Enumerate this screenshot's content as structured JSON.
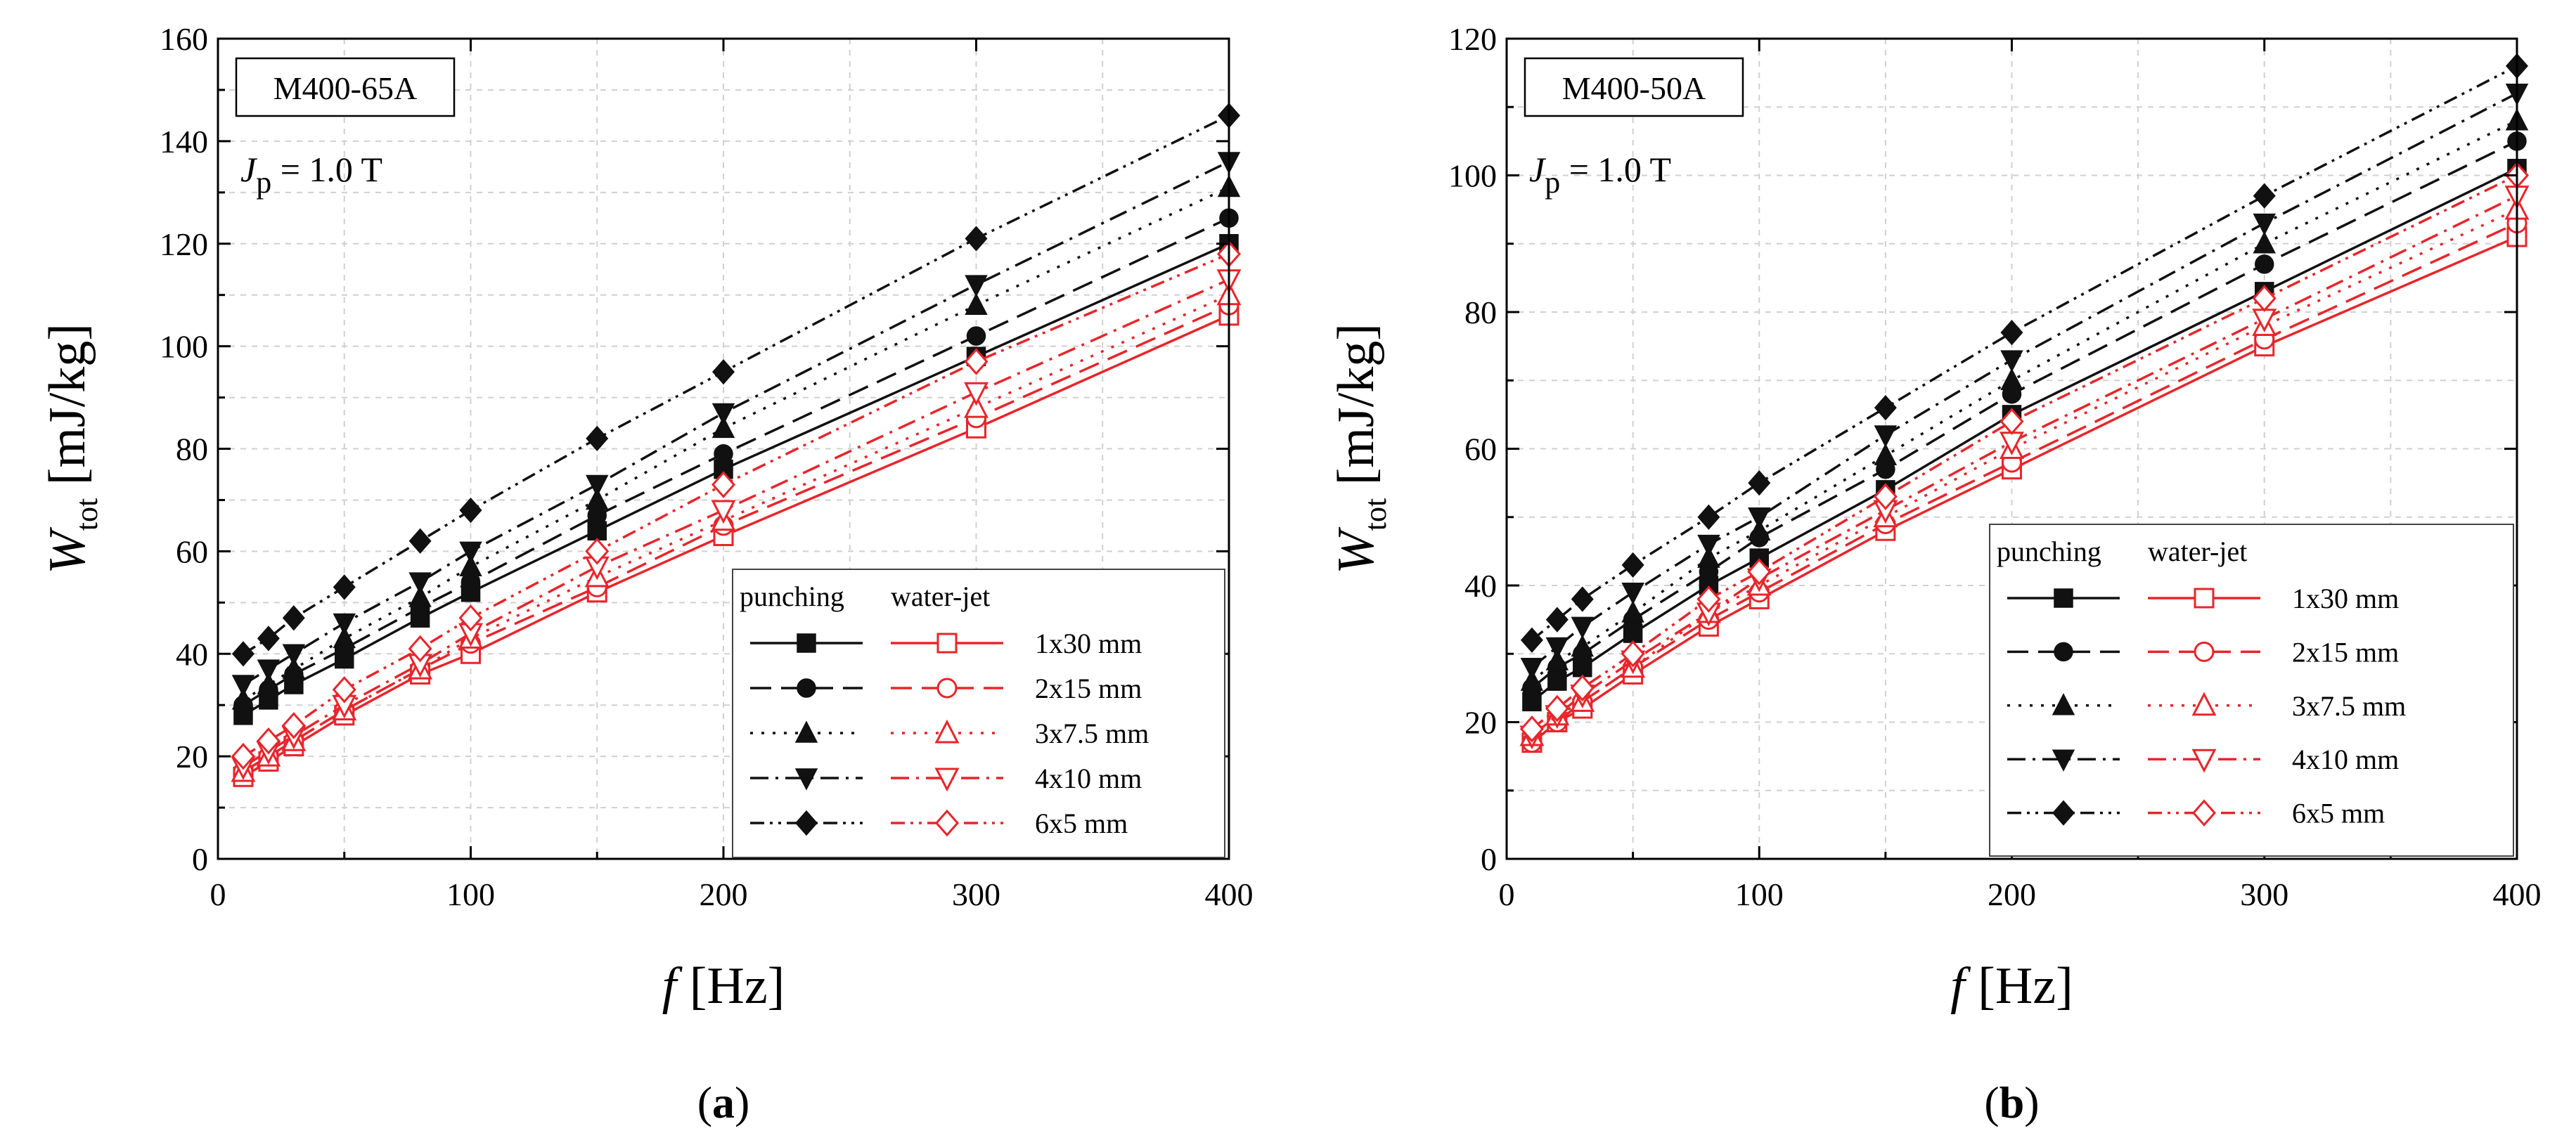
{
  "chart_data": [
    {
      "type": "line",
      "panel_caption": "(a)",
      "caption_letter": "a",
      "sample_label": "M400-65A",
      "condition": {
        "symbol": "J",
        "subscript": "p",
        "text": " = 1.0 T"
      },
      "xlabel": {
        "symbol": "f",
        "unit": " [Hz]"
      },
      "ylabel": {
        "symbol": "W",
        "subscript": "tot",
        "unit": " [mJ/kg]"
      },
      "xlim": [
        0,
        400
      ],
      "ylim": [
        0,
        160
      ],
      "xticks": [
        0,
        100,
        200,
        300,
        400
      ],
      "yticks": [
        0,
        20,
        40,
        60,
        80,
        100,
        120,
        140,
        160
      ],
      "grid": true,
      "legend_position": "lower-right",
      "legend_headers": [
        "punching",
        "water-jet"
      ],
      "x": [
        10,
        20,
        30,
        50,
        80,
        100,
        150,
        200,
        300,
        400
      ],
      "series": [
        {
          "name": "1x30 mm",
          "method": "punching",
          "values": [
            28,
            31,
            34,
            39,
            47,
            52,
            64,
            76,
            98,
            120
          ]
        },
        {
          "name": "2x15 mm",
          "method": "punching",
          "values": [
            30,
            33,
            36,
            41,
            49,
            54,
            67,
            79,
            102,
            125
          ]
        },
        {
          "name": "3x7.5 mm",
          "method": "punching",
          "values": [
            31,
            34,
            37,
            43,
            51,
            57,
            70,
            84,
            108,
            131
          ]
        },
        {
          "name": "4x10 mm",
          "method": "punching",
          "values": [
            34,
            37,
            40,
            46,
            54,
            60,
            73,
            87,
            112,
            136
          ]
        },
        {
          "name": "6x5 mm",
          "method": "punching",
          "values": [
            40,
            43,
            47,
            53,
            62,
            68,
            82,
            95,
            121,
            145
          ]
        },
        {
          "name": "1x30 mm",
          "method": "water-jet",
          "values": [
            16,
            19,
            22,
            28,
            36,
            40,
            52,
            63,
            84,
            106
          ]
        },
        {
          "name": "2x15 mm",
          "method": "water-jet",
          "values": [
            17,
            20,
            23,
            29,
            37,
            42,
            53,
            65,
            86,
            108
          ]
        },
        {
          "name": "3x7.5 mm",
          "method": "water-jet",
          "values": [
            17,
            20,
            23,
            29,
            37,
            43,
            55,
            66,
            88,
            110
          ]
        },
        {
          "name": "4x10 mm",
          "method": "water-jet",
          "values": [
            18,
            21,
            24,
            30,
            38,
            44,
            57,
            68,
            91,
            113
          ]
        },
        {
          "name": "6x5 mm",
          "method": "water-jet",
          "values": [
            20,
            23,
            26,
            33,
            41,
            47,
            60,
            73,
            97,
            118
          ]
        }
      ]
    },
    {
      "type": "line",
      "panel_caption": "(b)",
      "caption_letter": "b",
      "sample_label": "M400-50A",
      "condition": {
        "symbol": "J",
        "subscript": "p",
        "text": " = 1.0 T"
      },
      "xlabel": {
        "symbol": "f",
        "unit": " [Hz]"
      },
      "ylabel": {
        "symbol": "W",
        "subscript": "tot",
        "unit": " [mJ/kg]"
      },
      "xlim": [
        0,
        400
      ],
      "ylim": [
        0,
        120
      ],
      "xticks": [
        0,
        100,
        200,
        300,
        400
      ],
      "yticks": [
        0,
        20,
        40,
        60,
        80,
        100,
        120
      ],
      "grid": true,
      "legend_position": "lower-right",
      "legend_headers": [
        "punching",
        "water-jet"
      ],
      "x": [
        10,
        20,
        30,
        50,
        80,
        100,
        150,
        200,
        300,
        400
      ],
      "series": [
        {
          "name": "1x30 mm",
          "method": "punching",
          "values": [
            23,
            26,
            28,
            33,
            40,
            44,
            54,
            65,
            83,
            101
          ]
        },
        {
          "name": "2x15 mm",
          "method": "punching",
          "values": [
            25,
            28,
            30,
            35,
            42,
            47,
            57,
            68,
            87,
            105
          ]
        },
        {
          "name": "3x7.5 mm",
          "method": "punching",
          "values": [
            26,
            29,
            31,
            36,
            44,
            48,
            59,
            70,
            90,
            108
          ]
        },
        {
          "name": "4x10 mm",
          "method": "punching",
          "values": [
            28,
            31,
            34,
            39,
            46,
            50,
            62,
            73,
            93,
            112
          ]
        },
        {
          "name": "6x5 mm",
          "method": "punching",
          "values": [
            32,
            35,
            38,
            43,
            50,
            55,
            66,
            77,
            97,
            116
          ]
        },
        {
          "name": "1x30 mm",
          "method": "water-jet",
          "values": [
            17,
            20,
            22,
            27,
            34,
            38,
            48,
            57,
            75,
            91
          ]
        },
        {
          "name": "2x15 mm",
          "method": "water-jet",
          "values": [
            17,
            20,
            23,
            28,
            35,
            39,
            49,
            58,
            76,
            93
          ]
        },
        {
          "name": "3x7.5 mm",
          "method": "water-jet",
          "values": [
            18,
            21,
            23,
            28,
            36,
            40,
            50,
            60,
            78,
            95
          ]
        },
        {
          "name": "4x10 mm",
          "method": "water-jet",
          "values": [
            18,
            21,
            24,
            29,
            36,
            41,
            51,
            61,
            79,
            97
          ]
        },
        {
          "name": "6x5 mm",
          "method": "water-jet",
          "values": [
            19,
            22,
            25,
            30,
            38,
            42,
            53,
            64,
            82,
            100
          ]
        }
      ]
    }
  ]
}
